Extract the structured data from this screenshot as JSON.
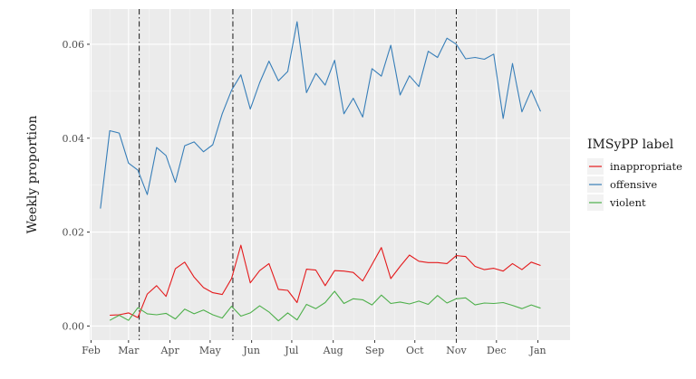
{
  "chart_data": {
    "type": "line",
    "title": "",
    "xlabel": "",
    "ylabel": "Weekly proportion",
    "ylim": [
      -0.003,
      0.0675
    ],
    "xlim": [
      "2022-01-31",
      "2023-01-25"
    ],
    "grid": true,
    "legend_position": "right",
    "y_ticks": [
      {
        "value": 0.0,
        "label": "0.00"
      },
      {
        "value": 0.02,
        "label": "0.02"
      },
      {
        "value": 0.04,
        "label": "0.04"
      },
      {
        "value": 0.06,
        "label": "0.06"
      }
    ],
    "x_ticks": [
      {
        "date": "2022-02-01",
        "label": "Feb"
      },
      {
        "date": "2022-03-01",
        "label": "Mar"
      },
      {
        "date": "2022-04-01",
        "label": "Apr"
      },
      {
        "date": "2022-05-01",
        "label": "May"
      },
      {
        "date": "2022-06-01",
        "label": "Jun"
      },
      {
        "date": "2022-07-01",
        "label": "Jul"
      },
      {
        "date": "2022-08-01",
        "label": "Aug"
      },
      {
        "date": "2022-09-01",
        "label": "Sep"
      },
      {
        "date": "2022-10-01",
        "label": "Oct"
      },
      {
        "date": "2022-11-01",
        "label": "Nov"
      },
      {
        "date": "2022-12-01",
        "label": "Dec"
      },
      {
        "date": "2023-01-01",
        "label": "Jan"
      }
    ],
    "vlines": [
      "2022-03-09",
      "2022-05-18",
      "2022-11-01"
    ],
    "legend_title": "IMSyPP label",
    "x": [
      "2022-02-08",
      "2022-02-15",
      "2022-02-22",
      "2022-03-01",
      "2022-03-08",
      "2022-03-15",
      "2022-03-22",
      "2022-03-29",
      "2022-04-05",
      "2022-04-12",
      "2022-04-19",
      "2022-04-26",
      "2022-05-03",
      "2022-05-10",
      "2022-05-17",
      "2022-05-24",
      "2022-05-31",
      "2022-06-07",
      "2022-06-14",
      "2022-06-21",
      "2022-06-28",
      "2022-07-05",
      "2022-07-12",
      "2022-07-19",
      "2022-07-26",
      "2022-08-02",
      "2022-08-09",
      "2022-08-16",
      "2022-08-23",
      "2022-08-30",
      "2022-09-06",
      "2022-09-13",
      "2022-09-20",
      "2022-09-27",
      "2022-10-04",
      "2022-10-11",
      "2022-10-18",
      "2022-10-25",
      "2022-11-01",
      "2022-11-08",
      "2022-11-15",
      "2022-11-22",
      "2022-11-29",
      "2022-12-06",
      "2022-12-13",
      "2022-12-20",
      "2022-12-27",
      "2023-01-03"
    ],
    "series": [
      {
        "name": "inappropriate",
        "color": "#e41a1c",
        "values": [
          null,
          0.0023,
          0.0024,
          0.0028,
          0.0018,
          0.0068,
          0.0086,
          0.0063,
          0.0122,
          0.0136,
          0.0104,
          0.0082,
          0.0071,
          0.0067,
          0.0101,
          0.0172,
          0.0092,
          0.0118,
          0.0133,
          0.0078,
          0.0076,
          0.005,
          0.0121,
          0.0119,
          0.0086,
          0.0118,
          0.0117,
          0.0114,
          0.0096,
          0.0131,
          0.0167,
          0.0101,
          0.0127,
          0.0151,
          0.0138,
          0.0135,
          0.0135,
          0.0133,
          0.015,
          0.0148,
          0.0127,
          0.012,
          0.0123,
          0.0117,
          0.0133,
          0.012,
          0.0136,
          0.0129
        ]
      },
      {
        "name": "offensive",
        "color": "#377eb8",
        "values": [
          0.025,
          0.0416,
          0.0411,
          0.0347,
          0.0332,
          0.028,
          0.038,
          0.0363,
          0.0306,
          0.0384,
          0.0392,
          0.0371,
          0.0386,
          0.0452,
          0.0502,
          0.0535,
          0.0462,
          0.0518,
          0.0564,
          0.0522,
          0.0542,
          0.0648,
          0.0497,
          0.0538,
          0.0513,
          0.0566,
          0.0452,
          0.0485,
          0.0445,
          0.0548,
          0.0532,
          0.0598,
          0.0492,
          0.0533,
          0.051,
          0.0585,
          0.0572,
          0.0613,
          0.06,
          0.0569,
          0.0572,
          0.0568,
          0.0579,
          0.0442,
          0.0559,
          0.0456,
          0.0502,
          0.0457
        ]
      },
      {
        "name": "violent",
        "color": "#4daf4a",
        "values": [
          null,
          0.0012,
          0.0023,
          0.0012,
          0.0039,
          0.0026,
          0.0024,
          0.0027,
          0.0015,
          0.0036,
          0.0026,
          0.0034,
          0.0024,
          0.0017,
          0.0042,
          0.0021,
          0.0028,
          0.0043,
          0.003,
          0.0011,
          0.0028,
          0.0013,
          0.0046,
          0.0037,
          0.005,
          0.0074,
          0.0048,
          0.0058,
          0.0056,
          0.0045,
          0.0066,
          0.0048,
          0.0051,
          0.0047,
          0.0053,
          0.0046,
          0.0065,
          0.0049,
          0.0058,
          0.006,
          0.0045,
          0.0049,
          0.0048,
          0.005,
          0.0044,
          0.0037,
          0.0045,
          0.0038
        ]
      }
    ]
  }
}
